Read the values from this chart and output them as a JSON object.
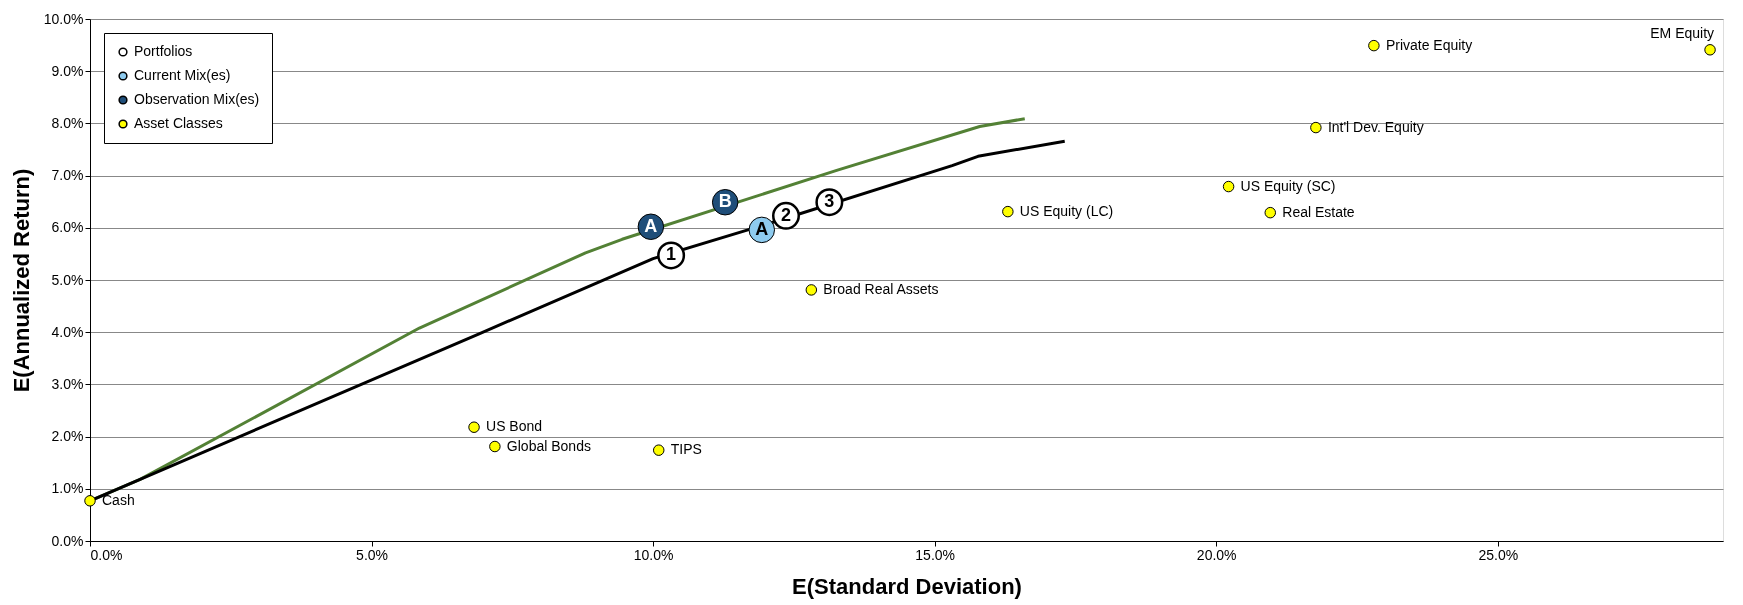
{
  "chart_data": {
    "type": "scatter",
    "xlabel": "E(Standard Deviation)",
    "ylabel": "E(Annualized Return)",
    "xlim": [
      0,
      29
    ],
    "ylim": [
      0,
      10
    ],
    "xticks": [
      {
        "value": 0,
        "label": "0.0%"
      },
      {
        "value": 5,
        "label": "5.0%"
      },
      {
        "value": 10,
        "label": "10.0%"
      },
      {
        "value": 15,
        "label": "15.0%"
      },
      {
        "value": 20,
        "label": "20.0%"
      },
      {
        "value": 25,
        "label": "25.0%"
      }
    ],
    "yticks": [
      {
        "value": 0,
        "label": "0.0%"
      },
      {
        "value": 1,
        "label": "1.0%"
      },
      {
        "value": 2,
        "label": "2.0%"
      },
      {
        "value": 3,
        "label": "3.0%"
      },
      {
        "value": 4,
        "label": "4.0%"
      },
      {
        "value": 5,
        "label": "5.0%"
      },
      {
        "value": 6,
        "label": "6.0%"
      },
      {
        "value": 7,
        "label": "7.0%"
      },
      {
        "value": 8,
        "label": "8.0%"
      },
      {
        "value": 9,
        "label": "9.0%"
      },
      {
        "value": 10,
        "label": "10.0%"
      }
    ],
    "grid": "y",
    "legend": "top left",
    "marker": "circle",
    "series": [
      {
        "type": "line",
        "marker": "none",
        "line_style": "solid",
        "color": "#538135",
        "x": [
          0,
          0.89,
          5.85,
          8.8,
          9.45,
          13.26,
          15.8,
          16.6
        ],
        "values": [
          0.77,
          1.18,
          4.08,
          5.52,
          5.78,
          7.1,
          7.94,
          8.09
        ]
      },
      {
        "type": "line",
        "marker": "none",
        "line_style": "solid",
        "color": "#000000",
        "x": [
          0,
          6.91,
          10.0,
          12.2,
          15.31,
          15.77,
          17.31
        ],
        "values": [
          0.77,
          3.97,
          5.41,
          6.13,
          7.19,
          7.37,
          7.66
        ]
      },
      {
        "type": "bubble",
        "name": "Portfolios",
        "color": "#ffffff",
        "x": [
          10.32,
          12.36,
          13.13
        ],
        "values": [
          5.47,
          6.23,
          6.49
        ],
        "sizes": [
          1,
          1,
          1
        ]
      },
      {
        "type": "bubble",
        "name": "Current Mix(es)",
        "color": "#8ecbef",
        "x": [
          11.93
        ],
        "values": [
          5.96
        ],
        "sizes": [
          1
        ]
      },
      {
        "type": "bubble",
        "name": "Observation Mix(es)",
        "color": "#1f4e79",
        "x": [
          9.96,
          11.28
        ],
        "values": [
          6.02,
          6.49
        ],
        "sizes": [
          1,
          1
        ]
      },
      {
        "name": "Asset Classes",
        "color": "#ffff00",
        "x": [
          0,
          6.82,
          7.19,
          10.1,
          12.81,
          16.3,
          20.22,
          20.96,
          21.77,
          22.8,
          28.77
        ],
        "values": [
          0.77,
          2.18,
          1.81,
          1.74,
          4.81,
          6.31,
          6.79,
          6.29,
          7.92,
          9.49,
          9.41
        ]
      }
    ],
    "annotations": [
      {
        "text": "1",
        "x": 10.32,
        "y": 5.47
      },
      {
        "text": "2",
        "x": 12.36,
        "y": 6.23
      },
      {
        "text": "3",
        "x": 13.13,
        "y": 6.49
      },
      {
        "text": "A",
        "x": 11.93,
        "y": 5.96
      },
      {
        "text": "A",
        "x": 9.96,
        "y": 6.02
      },
      {
        "text": "B",
        "x": 11.28,
        "y": 6.49
      },
      {
        "text": "Cash",
        "x": 0,
        "y": 0.77
      },
      {
        "text": "US Bond",
        "x": 6.82,
        "y": 2.18
      },
      {
        "text": "Global Bonds",
        "x": 7.19,
        "y": 1.81
      },
      {
        "text": "TIPS",
        "x": 10.1,
        "y": 1.74
      },
      {
        "text": "Broad Real Assets",
        "x": 12.81,
        "y": 4.81
      },
      {
        "text": "US Equity (LC)",
        "x": 16.3,
        "y": 6.31
      },
      {
        "text": "US Equity (SC)",
        "x": 20.22,
        "y": 6.79
      },
      {
        "text": "Real Estate",
        "x": 20.96,
        "y": 6.29
      },
      {
        "text": "Int'l Dev. Equity",
        "x": 21.77,
        "y": 7.92
      },
      {
        "text": "Private Equity",
        "x": 22.8,
        "y": 9.49
      },
      {
        "text": "EM Equity",
        "x": 28.77,
        "y": 9.41
      }
    ]
  }
}
